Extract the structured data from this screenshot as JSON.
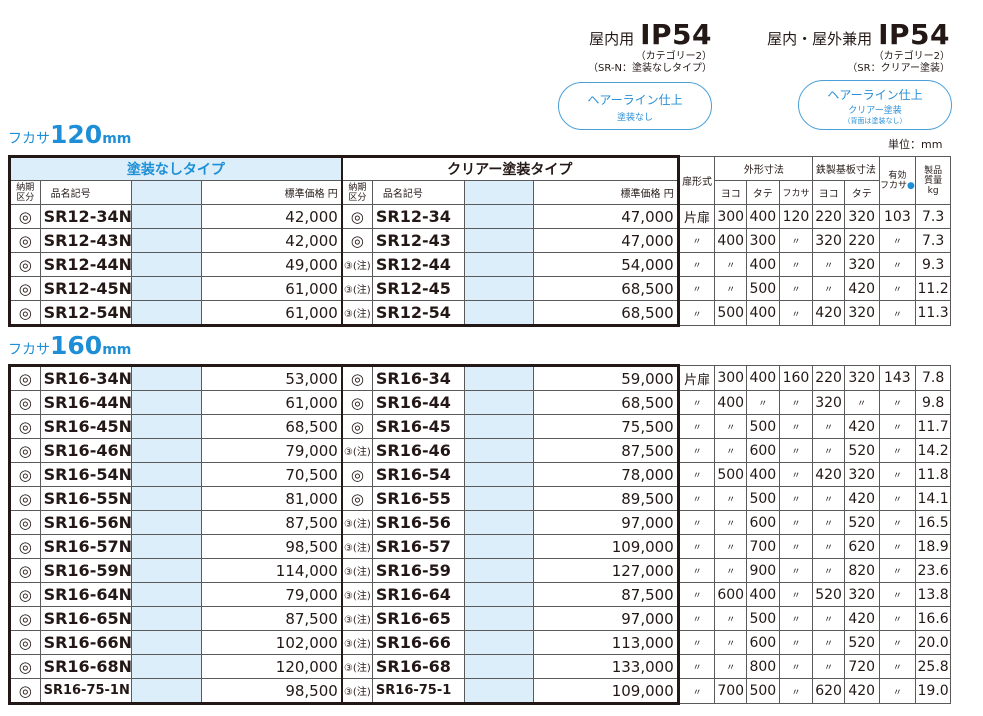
{
  "header": {
    "indoor": {
      "label": "屋内用",
      "rating": "IP54",
      "sub1": "（カテゴリー2）",
      "sub2": "（SR-N：塗装なしタイプ）"
    },
    "outdoor": {
      "label": "屋内・屋外兼用",
      "rating": "IP54",
      "sub1": "（カテゴリー2）",
      "sub2": "（SR：クリアー塗装）"
    },
    "finish_left": {
      "line1": "ヘアーライン仕上",
      "line2": "塗装なし"
    },
    "finish_right": {
      "line1": "ヘアーライン仕上",
      "line2": "クリアー塗装",
      "line3": "（背面は塗装なし）"
    }
  },
  "section120": {
    "prefix": "フカサ",
    "value": "120",
    "unit": "mm"
  },
  "section160": {
    "prefix": "フカサ",
    "value": "160",
    "unit": "mm"
  },
  "unit_label": "単位：mm",
  "cols": {
    "group_uncoated": "塗装なしタイプ",
    "group_clear": "クリアー塗装タイプ",
    "delivery_1": "納期",
    "delivery_2": "区分",
    "name": "品名記号",
    "price": "標準価格 円",
    "door_type": "扉形式",
    "outer": "外形寸法",
    "plate": "鉄製基板寸法",
    "w": "ヨコ",
    "h": "タテ",
    "d": "フカサ",
    "pw": "ヨコ",
    "ph": "タテ",
    "eff_1": "有効",
    "eff_2": "フカサ",
    "eff_dot": "●",
    "weight_1": "製品",
    "weight_2": "質量",
    "weight_3": "kg"
  },
  "rows120": [
    {
      "s1": "◎",
      "c1": "SR12-34N",
      "p1": "42,000",
      "s2": "◎",
      "c2": "SR12-34",
      "p2": "47,000",
      "door": "片扉",
      "w": "300",
      "h": "400",
      "d": "120",
      "pw": "220",
      "ph": "320",
      "ed": "103",
      "kg": "7.3"
    },
    {
      "s1": "◎",
      "c1": "SR12-43N",
      "p1": "42,000",
      "s2": "◎",
      "c2": "SR12-43",
      "p2": "47,000",
      "door": "〃",
      "w": "400",
      "h": "300",
      "d": "〃",
      "pw": "320",
      "ph": "220",
      "ed": "〃",
      "kg": "7.3"
    },
    {
      "s1": "◎",
      "c1": "SR12-44N",
      "p1": "49,000",
      "s2": "③(注)",
      "c2": "SR12-44",
      "p2": "54,000",
      "door": "〃",
      "w": "〃",
      "h": "400",
      "d": "〃",
      "pw": "〃",
      "ph": "320",
      "ed": "〃",
      "kg": "9.3"
    },
    {
      "s1": "◎",
      "c1": "SR12-45N",
      "p1": "61,000",
      "s2": "③(注)",
      "c2": "SR12-45",
      "p2": "68,500",
      "door": "〃",
      "w": "〃",
      "h": "500",
      "d": "〃",
      "pw": "〃",
      "ph": "420",
      "ed": "〃",
      "kg": "11.2"
    },
    {
      "s1": "◎",
      "c1": "SR12-54N",
      "p1": "61,000",
      "s2": "③(注)",
      "c2": "SR12-54",
      "p2": "68,500",
      "door": "〃",
      "w": "500",
      "h": "400",
      "d": "〃",
      "pw": "420",
      "ph": "320",
      "ed": "〃",
      "kg": "11.3"
    }
  ],
  "rows160": [
    {
      "s1": "◎",
      "c1": "SR16-34N",
      "p1": "53,000",
      "s2": "◎",
      "c2": "SR16-34",
      "p2": "59,000",
      "door": "片扉",
      "w": "300",
      "h": "400",
      "d": "160",
      "pw": "220",
      "ph": "320",
      "ed": "143",
      "kg": "7.8"
    },
    {
      "s1": "◎",
      "c1": "SR16-44N",
      "p1": "61,000",
      "s2": "◎",
      "c2": "SR16-44",
      "p2": "68,500",
      "door": "〃",
      "w": "400",
      "h": "〃",
      "d": "〃",
      "pw": "320",
      "ph": "〃",
      "ed": "〃",
      "kg": "9.8"
    },
    {
      "s1": "◎",
      "c1": "SR16-45N",
      "p1": "68,500",
      "s2": "◎",
      "c2": "SR16-45",
      "p2": "75,500",
      "door": "〃",
      "w": "〃",
      "h": "500",
      "d": "〃",
      "pw": "〃",
      "ph": "420",
      "ed": "〃",
      "kg": "11.7"
    },
    {
      "s1": "◎",
      "c1": "SR16-46N",
      "p1": "79,000",
      "s2": "③(注)",
      "c2": "SR16-46",
      "p2": "87,500",
      "door": "〃",
      "w": "〃",
      "h": "600",
      "d": "〃",
      "pw": "〃",
      "ph": "520",
      "ed": "〃",
      "kg": "14.2"
    },
    {
      "s1": "◎",
      "c1": "SR16-54N",
      "p1": "70,500",
      "s2": "◎",
      "c2": "SR16-54",
      "p2": "78,000",
      "door": "〃",
      "w": "500",
      "h": "400",
      "d": "〃",
      "pw": "420",
      "ph": "320",
      "ed": "〃",
      "kg": "11.8"
    },
    {
      "s1": "◎",
      "c1": "SR16-55N",
      "p1": "81,000",
      "s2": "◎",
      "c2": "SR16-55",
      "p2": "89,500",
      "door": "〃",
      "w": "〃",
      "h": "500",
      "d": "〃",
      "pw": "〃",
      "ph": "420",
      "ed": "〃",
      "kg": "14.1"
    },
    {
      "s1": "◎",
      "c1": "SR16-56N",
      "p1": "87,500",
      "s2": "③(注)",
      "c2": "SR16-56",
      "p2": "97,000",
      "door": "〃",
      "w": "〃",
      "h": "600",
      "d": "〃",
      "pw": "〃",
      "ph": "520",
      "ed": "〃",
      "kg": "16.5"
    },
    {
      "s1": "◎",
      "c1": "SR16-57N",
      "p1": "98,500",
      "s2": "③(注)",
      "c2": "SR16-57",
      "p2": "109,000",
      "door": "〃",
      "w": "〃",
      "h": "700",
      "d": "〃",
      "pw": "〃",
      "ph": "620",
      "ed": "〃",
      "kg": "18.9"
    },
    {
      "s1": "◎",
      "c1": "SR16-59N",
      "p1": "114,000",
      "s2": "③(注)",
      "c2": "SR16-59",
      "p2": "127,000",
      "door": "〃",
      "w": "〃",
      "h": "900",
      "d": "〃",
      "pw": "〃",
      "ph": "820",
      "ed": "〃",
      "kg": "23.6"
    },
    {
      "s1": "◎",
      "c1": "SR16-64N",
      "p1": "79,000",
      "s2": "③(注)",
      "c2": "SR16-64",
      "p2": "87,500",
      "door": "〃",
      "w": "600",
      "h": "400",
      "d": "〃",
      "pw": "520",
      "ph": "320",
      "ed": "〃",
      "kg": "13.8"
    },
    {
      "s1": "◎",
      "c1": "SR16-65N",
      "p1": "87,500",
      "s2": "③(注)",
      "c2": "SR16-65",
      "p2": "97,000",
      "door": "〃",
      "w": "〃",
      "h": "500",
      "d": "〃",
      "pw": "〃",
      "ph": "420",
      "ed": "〃",
      "kg": "16.6"
    },
    {
      "s1": "◎",
      "c1": "SR16-66N",
      "p1": "102,000",
      "s2": "③(注)",
      "c2": "SR16-66",
      "p2": "113,000",
      "door": "〃",
      "w": "〃",
      "h": "600",
      "d": "〃",
      "pw": "〃",
      "ph": "520",
      "ed": "〃",
      "kg": "20.0"
    },
    {
      "s1": "◎",
      "c1": "SR16-68N",
      "p1": "120,000",
      "s2": "③(注)",
      "c2": "SR16-68",
      "p2": "133,000",
      "door": "〃",
      "w": "〃",
      "h": "800",
      "d": "〃",
      "pw": "〃",
      "ph": "720",
      "ed": "〃",
      "kg": "25.8"
    },
    {
      "s1": "◎",
      "c1": "SR16-75-1N",
      "p1": "98,500",
      "s2": "③(注)",
      "c2": "SR16-75-1",
      "p2": "109,000",
      "door": "〃",
      "w": "700",
      "h": "500",
      "d": "〃",
      "pw": "620",
      "ph": "420",
      "ed": "〃",
      "kg": "19.0"
    }
  ]
}
